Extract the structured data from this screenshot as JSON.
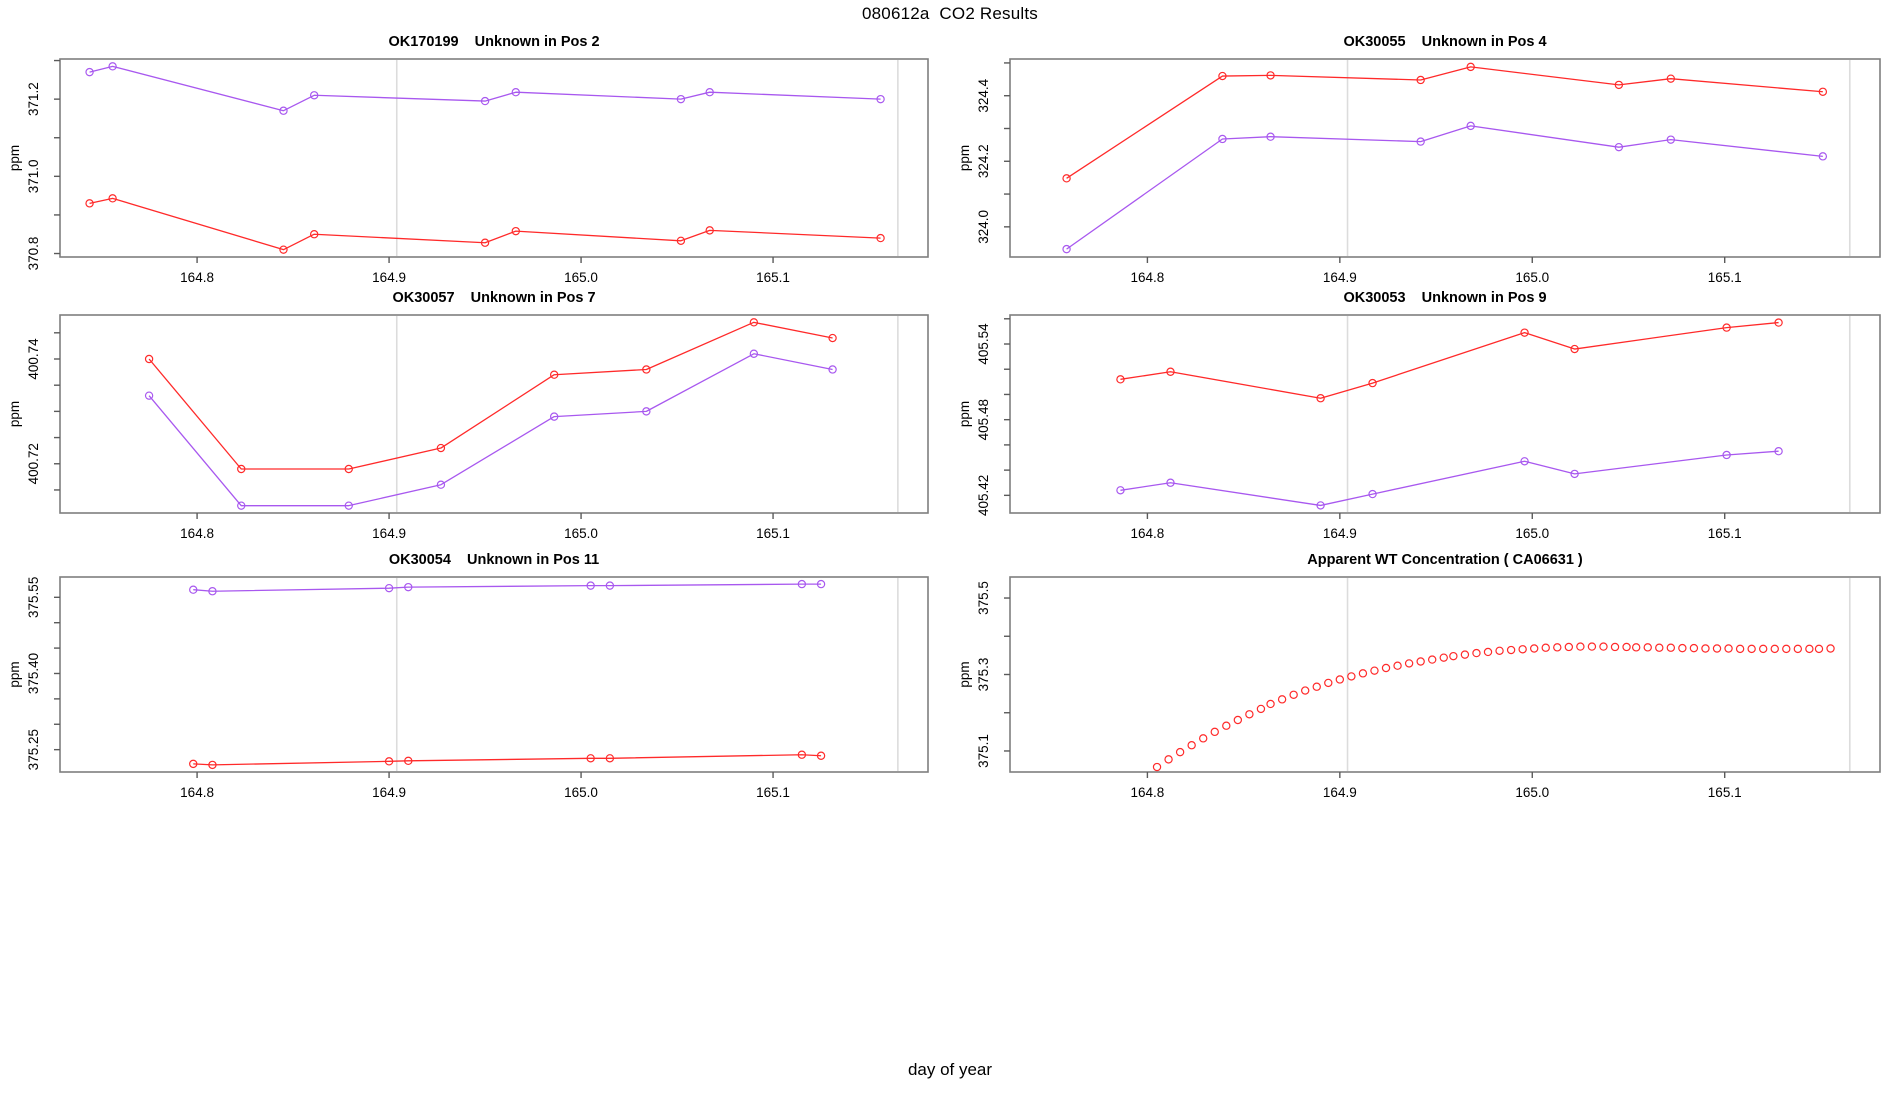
{
  "title": "080612a  CO2 Results",
  "xlabel": "day of year",
  "colors": {
    "red": "#ff2a2a",
    "purple": "#a858ef",
    "ref_line": "#dcdcdc",
    "axis_box": "#7e7e7e",
    "tick": "#5a5a5a",
    "text": "#000000",
    "background": "#ffffff"
  },
  "axis": {
    "xlim": [
      164.7286,
      165.1807
    ],
    "x_ticks": [
      {
        "v": 164.8,
        "label": "164.8"
      },
      {
        "v": 164.9,
        "label": "164.9"
      },
      {
        "v": 165.0,
        "label": "165.0"
      },
      {
        "v": 165.1,
        "label": "165.1"
      }
    ],
    "ref_lines": [
      164.904,
      165.165
    ]
  },
  "chart_data": [
    {
      "type": "line",
      "title": "OK170199    Unknown in Pos 2",
      "ylabel": "ppm",
      "ylim": [
        370.791,
        371.304
      ],
      "y_ticks": [
        {
          "v": 370.8,
          "label": "370.8"
        },
        {
          "v": 370.9,
          "label": ""
        },
        {
          "v": 371.0,
          "label": "371.0"
        },
        {
          "v": 371.1,
          "label": ""
        },
        {
          "v": 371.2,
          "label": "371.2"
        },
        {
          "v": 371.3,
          "label": ""
        }
      ],
      "x": [
        164.744,
        164.756,
        164.845,
        164.861,
        164.95,
        164.966,
        165.052,
        165.067,
        165.156
      ],
      "series": [
        {
          "name": "red",
          "color": "red",
          "y": [
            370.93,
            370.943,
            370.81,
            370.85,
            370.828,
            370.858,
            370.833,
            370.86,
            370.84
          ]
        },
        {
          "name": "purple",
          "color": "purple",
          "y": [
            371.27,
            371.285,
            371.17,
            371.21,
            371.195,
            371.218,
            371.2,
            371.218,
            371.2
          ]
        }
      ]
    },
    {
      "type": "line",
      "title": "OK30055    Unknown in Pos 4",
      "ylabel": "ppm",
      "ylim": [
        323.908,
        324.512
      ],
      "y_ticks": [
        {
          "v": 324.0,
          "label": "324.0"
        },
        {
          "v": 324.1,
          "label": ""
        },
        {
          "v": 324.2,
          "label": "324.2"
        },
        {
          "v": 324.3,
          "label": ""
        },
        {
          "v": 324.4,
          "label": "324.4"
        },
        {
          "v": 324.5,
          "label": ""
        }
      ],
      "x": [
        164.758,
        164.839,
        164.864,
        164.942,
        164.968,
        165.045,
        165.072,
        165.151
      ],
      "series": [
        {
          "name": "red",
          "color": "red",
          "y": [
            324.148,
            324.46,
            324.462,
            324.448,
            324.488,
            324.433,
            324.452,
            324.412
          ]
        },
        {
          "name": "purple",
          "color": "purple",
          "y": [
            323.932,
            324.268,
            324.275,
            324.26,
            324.308,
            324.243,
            324.266,
            324.215
          ]
        }
      ]
    },
    {
      "type": "line",
      "title": "OK30057    Unknown in Pos 7",
      "ylabel": "ppm",
      "ylim": [
        400.7106,
        400.7484
      ],
      "y_ticks": [
        {
          "v": 400.715,
          "label": ""
        },
        {
          "v": 400.72,
          "label": "400.72"
        },
        {
          "v": 400.725,
          "label": ""
        },
        {
          "v": 400.73,
          "label": ""
        },
        {
          "v": 400.735,
          "label": ""
        },
        {
          "v": 400.74,
          "label": "400.74"
        },
        {
          "v": 400.745,
          "label": ""
        }
      ],
      "x": [
        164.775,
        164.823,
        164.879,
        164.927,
        164.986,
        165.034,
        165.09,
        165.131
      ],
      "series": [
        {
          "name": "red",
          "color": "red",
          "y": [
            400.74,
            400.719,
            400.719,
            400.723,
            400.737,
            400.738,
            400.747,
            400.744
          ]
        },
        {
          "name": "purple",
          "color": "purple",
          "y": [
            400.733,
            400.712,
            400.712,
            400.716,
            400.729,
            400.73,
            400.741,
            400.738
          ]
        }
      ]
    },
    {
      "type": "line",
      "title": "OK30053    Unknown in Pos 9",
      "ylabel": "ppm",
      "ylim": [
        405.406,
        405.563
      ],
      "y_ticks": [
        {
          "v": 405.42,
          "label": "405.42"
        },
        {
          "v": 405.44,
          "label": ""
        },
        {
          "v": 405.46,
          "label": ""
        },
        {
          "v": 405.48,
          "label": "405.48"
        },
        {
          "v": 405.5,
          "label": ""
        },
        {
          "v": 405.52,
          "label": ""
        },
        {
          "v": 405.54,
          "label": "405.54"
        },
        {
          "v": 405.56,
          "label": ""
        }
      ],
      "x": [
        164.786,
        164.812,
        164.89,
        164.917,
        164.996,
        165.022,
        165.101,
        165.128
      ],
      "series": [
        {
          "name": "red",
          "color": "red",
          "y": [
            405.512,
            405.518,
            405.497,
            405.509,
            405.549,
            405.536,
            405.553,
            405.557
          ]
        },
        {
          "name": "purple",
          "color": "purple",
          "y": [
            405.424,
            405.43,
            405.412,
            405.421,
            405.447,
            405.437,
            405.452,
            405.455
          ]
        }
      ]
    },
    {
      "type": "line",
      "title": "OK30054    Unknown in Pos 11",
      "ylabel": "ppm",
      "ylim": [
        375.206,
        375.59
      ],
      "y_ticks": [
        {
          "v": 375.25,
          "label": "375.25"
        },
        {
          "v": 375.3,
          "label": ""
        },
        {
          "v": 375.35,
          "label": ""
        },
        {
          "v": 375.4,
          "label": "375.40"
        },
        {
          "v": 375.45,
          "label": ""
        },
        {
          "v": 375.5,
          "label": ""
        },
        {
          "v": 375.55,
          "label": "375.55"
        }
      ],
      "x": [
        164.798,
        164.808,
        164.9,
        164.91,
        165.005,
        165.015,
        165.115,
        165.125
      ],
      "series": [
        {
          "name": "red",
          "color": "red",
          "y": [
            375.222,
            375.22,
            375.227,
            375.228,
            375.233,
            375.233,
            375.24,
            375.238
          ]
        },
        {
          "name": "purple",
          "color": "purple",
          "y": [
            375.565,
            375.562,
            375.568,
            375.57,
            375.573,
            375.573,
            375.576,
            375.576
          ]
        }
      ]
    },
    {
      "type": "scatter",
      "title": "Apparent WT Concentration ( CA06631 )",
      "ylabel": "ppm",
      "ylim": [
        375.045,
        375.555
      ],
      "y_ticks": [
        {
          "v": 375.1,
          "label": "375.1"
        },
        {
          "v": 375.2,
          "label": ""
        },
        {
          "v": 375.3,
          "label": "375.3"
        },
        {
          "v": 375.4,
          "label": ""
        },
        {
          "v": 375.5,
          "label": "375.5"
        }
      ],
      "x": [
        164.805,
        164.811,
        164.817,
        164.823,
        164.829,
        164.835,
        164.841,
        164.847,
        164.853,
        164.859,
        164.864,
        164.87,
        164.876,
        164.882,
        164.888,
        164.894,
        164.9,
        164.906,
        164.912,
        164.918,
        164.924,
        164.93,
        164.936,
        164.942,
        164.948,
        164.954,
        164.959,
        164.965,
        164.971,
        164.977,
        164.983,
        164.989,
        164.995,
        165.001,
        165.007,
        165.013,
        165.019,
        165.025,
        165.031,
        165.037,
        165.043,
        165.049,
        165.054,
        165.06,
        165.066,
        165.072,
        165.078,
        165.084,
        165.09,
        165.096,
        165.102,
        165.108,
        165.114,
        165.12,
        165.126,
        165.132,
        165.138,
        165.144,
        165.149,
        165.155
      ],
      "series": [
        {
          "name": "red",
          "color": "red",
          "y": [
            375.058,
            375.078,
            375.097,
            375.115,
            375.133,
            375.15,
            375.166,
            375.181,
            375.196,
            375.21,
            375.223,
            375.235,
            375.247,
            375.258,
            375.268,
            375.278,
            375.287,
            375.295,
            375.303,
            375.31,
            375.317,
            375.323,
            375.329,
            375.334,
            375.339,
            375.344,
            375.348,
            375.352,
            375.356,
            375.359,
            375.362,
            375.364,
            375.366,
            375.368,
            375.37,
            375.371,
            375.372,
            375.373,
            375.373,
            375.373,
            375.372,
            375.372,
            375.371,
            375.371,
            375.37,
            375.37,
            375.369,
            375.369,
            375.368,
            375.368,
            375.368,
            375.367,
            375.367,
            375.367,
            375.367,
            375.367,
            375.367,
            375.367,
            375.367,
            375.368
          ]
        }
      ]
    }
  ]
}
